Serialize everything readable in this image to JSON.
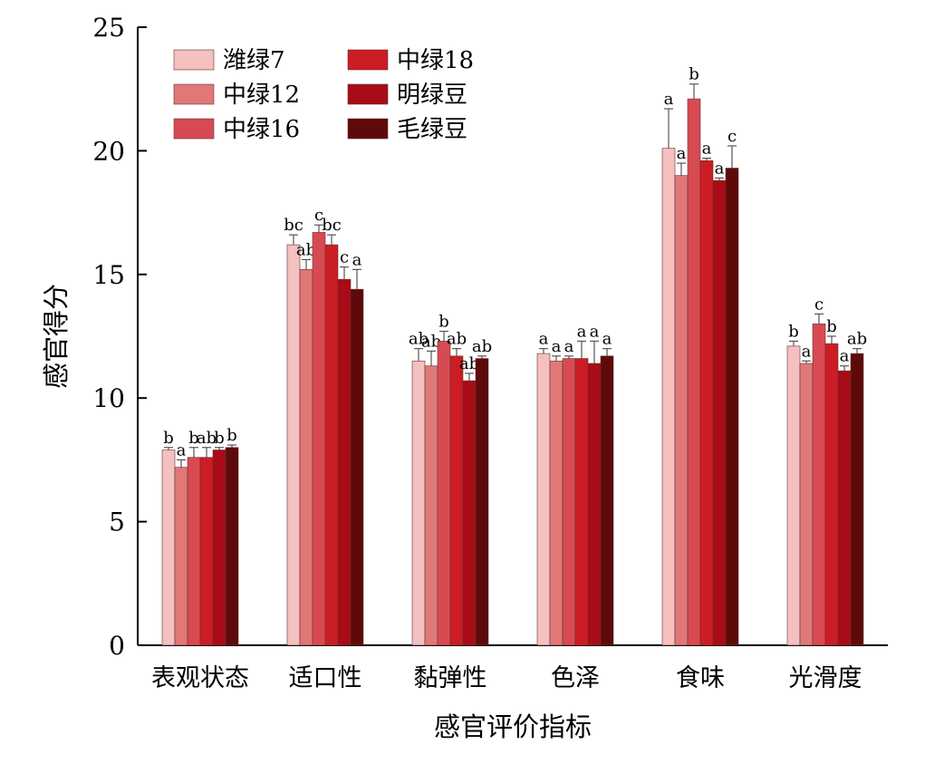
{
  "chart_data": {
    "type": "bar",
    "title": "",
    "xlabel": "感官评价指标",
    "ylabel": "感官得分",
    "ylim": [
      0,
      25
    ],
    "yticks": [
      0,
      5,
      10,
      15,
      20,
      25
    ],
    "grid": false,
    "legend_position": "top-left",
    "categories": [
      "表观状态",
      "适口性",
      "黏弹性",
      "色泽",
      "食味",
      "光滑度"
    ],
    "series": [
      {
        "name": "潍绿7",
        "color": "#f4c0c0",
        "values": [
          7.9,
          16.2,
          11.5,
          11.8,
          20.1,
          12.1
        ],
        "errors": [
          0.1,
          0.4,
          0.5,
          0.2,
          1.6,
          0.2
        ],
        "labels": [
          "b",
          "bc",
          "ab",
          "a",
          "a",
          "b"
        ]
      },
      {
        "name": "中绿12",
        "color": "#e07878",
        "values": [
          7.2,
          15.2,
          11.3,
          11.5,
          19.0,
          11.4
        ],
        "errors": [
          0.3,
          0.4,
          0.6,
          0.2,
          0.5,
          0.1
        ],
        "labels": [
          "a",
          "ab",
          "ab",
          "a",
          "a",
          "a"
        ]
      },
      {
        "name": "中绿16",
        "color": "#d84a52",
        "values": [
          7.6,
          16.7,
          12.3,
          11.6,
          22.1,
          13.0
        ],
        "errors": [
          0.4,
          0.3,
          0.4,
          0.1,
          0.6,
          0.4
        ],
        "labels": [
          "b",
          "c",
          "b",
          "a",
          "b",
          "c"
        ]
      },
      {
        "name": "中绿18",
        "color": "#cc1d24",
        "values": [
          7.6,
          16.2,
          11.7,
          11.6,
          19.6,
          12.2
        ],
        "errors": [
          0.4,
          0.4,
          0.3,
          0.7,
          0.1,
          0.3
        ],
        "labels": [
          "ab",
          "bc",
          "ab",
          "a",
          "a",
          "b"
        ]
      },
      {
        "name": "明绿豆",
        "color": "#a80c16",
        "values": [
          7.9,
          14.8,
          10.7,
          11.4,
          18.8,
          11.1
        ],
        "errors": [
          0.1,
          0.5,
          0.3,
          0.9,
          0.1,
          0.2
        ],
        "labels": [
          "b",
          "c",
          "ab",
          "a",
          "a",
          "a"
        ]
      },
      {
        "name": "毛绿豆",
        "color": "#5e0a0a",
        "values": [
          8.0,
          14.4,
          11.6,
          11.7,
          19.3,
          11.8
        ],
        "errors": [
          0.1,
          0.8,
          0.1,
          0.3,
          0.9,
          0.2
        ],
        "labels": [
          "b",
          "a",
          "ab",
          "a",
          "c",
          "ab"
        ]
      }
    ]
  }
}
